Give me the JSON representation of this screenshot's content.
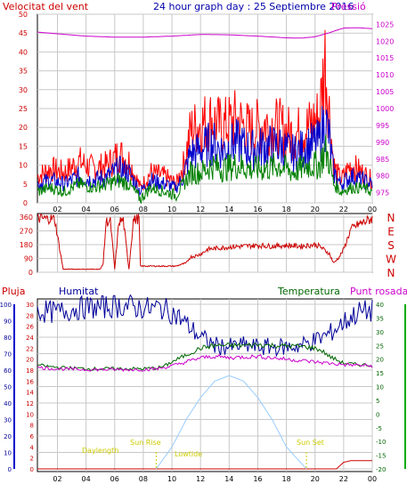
{
  "header": {
    "left_title": "Velocitat del vent",
    "center_title": "24 hour graph day : 25 Septiembre 2016",
    "right_title": "Pressió"
  },
  "colors": {
    "wind_avg": "#0000cc",
    "wind_gust": "#ff0000",
    "wind_low": "#008000",
    "pressure": "#cc00cc",
    "direction": "#cc0000",
    "humidity": "#000099",
    "temperature": "#006600",
    "dewpoint": "#cc00cc",
    "rain": "#cc0000",
    "sun": "#99ccff",
    "grid": "#c8c8c8",
    "axis_left": "#cc0000",
    "axis_right_pressure": "#cc00cc"
  },
  "chart_data": [
    {
      "type": "line",
      "title": "24 hour graph day : 25 Septiembre 2016",
      "ylabel": "Velocitat del vent",
      "y2label": "Pressió",
      "xticks": [
        "02",
        "04",
        "06",
        "08",
        "10",
        "12",
        "14",
        "16",
        "18",
        "20",
        "22",
        "00"
      ],
      "x_range_hours": [
        0.6,
        24.0
      ],
      "ylim": [
        0,
        50
      ],
      "yticks": [
        0,
        5,
        10,
        15,
        20,
        25,
        30,
        35,
        40,
        45,
        50
      ],
      "y2lim": [
        972,
        1028
      ],
      "y2ticks": [
        975,
        980,
        985,
        990,
        995,
        1000,
        1005,
        1010,
        1015,
        1020,
        1025
      ],
      "series": [
        {
          "name": "gust",
          "x_hours": [
            0.6,
            1.5,
            2.5,
            3.5,
            4.5,
            5.5,
            6.3,
            7,
            7.8,
            8.5,
            9.5,
            10.3,
            10.8,
            11.3,
            12,
            12.8,
            13.5,
            14.5,
            15.5,
            16.5,
            17.5,
            18.5,
            19.5,
            20.3,
            20.7,
            21,
            21.3,
            21.8,
            22.5,
            23.3,
            24
          ],
          "values": [
            7,
            9,
            8,
            11,
            9,
            10,
            13,
            11,
            4,
            8,
            7,
            5,
            10,
            19,
            21,
            22,
            20,
            22,
            19,
            21,
            20,
            18,
            20,
            23,
            38,
            24,
            10,
            6,
            10,
            8,
            6
          ]
        },
        {
          "name": "average",
          "x_hours": [
            0.6,
            1.5,
            2.5,
            3.5,
            4.5,
            5.5,
            6.3,
            7,
            7.8,
            8.5,
            9.5,
            10.3,
            10.8,
            11.3,
            12,
            12.8,
            13.5,
            14.5,
            15.5,
            16.5,
            17.5,
            18.5,
            19.5,
            20.3,
            20.7,
            21,
            21.3,
            21.8,
            22.5,
            23.3,
            24
          ],
          "values": [
            5,
            6,
            5,
            7,
            6,
            7,
            9,
            8,
            3,
            6,
            5,
            4,
            7,
            13,
            14,
            16,
            14,
            16,
            14,
            15,
            15,
            13,
            15,
            16,
            22,
            17,
            8,
            5,
            7,
            6,
            5
          ]
        },
        {
          "name": "low",
          "x_hours": [
            0.6,
            1.5,
            2.5,
            3.5,
            4.5,
            5.5,
            6.3,
            7,
            7.8,
            8.5,
            9.5,
            10.3,
            10.8,
            11.3,
            12,
            12.8,
            13.5,
            14.5,
            15.5,
            16.5,
            17.5,
            18.5,
            19.5,
            20.3,
            20.7,
            21,
            21.3,
            21.8,
            22.5,
            23.3,
            24
          ],
          "values": [
            3,
            4,
            3,
            5,
            4,
            5,
            6,
            5,
            1,
            4,
            3,
            2,
            5,
            8,
            8,
            10,
            9,
            10,
            9,
            9,
            10,
            8,
            10,
            10,
            14,
            11,
            5,
            3,
            4,
            4,
            3
          ]
        },
        {
          "name": "pressure",
          "axis": "right",
          "x_hours": [
            0.6,
            2,
            4,
            6,
            8,
            10,
            12,
            14,
            16,
            18,
            19,
            20,
            21,
            22,
            23,
            24
          ],
          "values": [
            1022.7,
            1022.2,
            1021.5,
            1021.2,
            1021.2,
            1021.5,
            1022.0,
            1021.9,
            1021.5,
            1021.0,
            1020.9,
            1021.3,
            1022.5,
            1023.9,
            1024.0,
            1023.7
          ]
        }
      ]
    },
    {
      "type": "line",
      "ylabel": "",
      "ylim": [
        0,
        360
      ],
      "yticks": [
        0,
        90,
        180,
        270,
        360
      ],
      "y2ticks": [
        "N",
        "W",
        "S",
        "E",
        "N"
      ],
      "series": [
        {
          "name": "direction",
          "x_hours": [
            0.6,
            1,
            1.4,
            1.8,
            2.4,
            3.4,
            4.4,
            5,
            5.2,
            5.4,
            5.7,
            6,
            6.3,
            6.6,
            7,
            7.3,
            7.7,
            7.8,
            8.5,
            9,
            9.5,
            10,
            10.3,
            10.6,
            11,
            11.3,
            11.8,
            12.2,
            12.5,
            13,
            14,
            15,
            16,
            17,
            18,
            19,
            19.5,
            20,
            20.3,
            20.6,
            21,
            21.3,
            21.7,
            22,
            22.5,
            23,
            23.5,
            24
          ],
          "values": [
            350,
            350,
            350,
            350,
            20,
            20,
            20,
            20,
            60,
            330,
            330,
            20,
            330,
            340,
            20,
            340,
            350,
            40,
            40,
            40,
            40,
            40,
            40,
            50,
            60,
            100,
            110,
            130,
            150,
            155,
            165,
            170,
            175,
            170,
            175,
            170,
            175,
            180,
            170,
            150,
            120,
            60,
            100,
            150,
            280,
            310,
            330,
            350
          ]
        }
      ]
    },
    {
      "type": "line",
      "legend": [
        "Pluja",
        "Humitat",
        "Temperatura",
        "Punt rosada"
      ],
      "ylim_humidity": [
        0,
        100
      ],
      "yticks_humidity": [
        0,
        10,
        20,
        30,
        40,
        50,
        60,
        70,
        80,
        90,
        100
      ],
      "ylim_rain": [
        0,
        30
      ],
      "yticks_rain": [
        0,
        2,
        4,
        6,
        8,
        10,
        12,
        14,
        16,
        18,
        20,
        22,
        24,
        26,
        28,
        30
      ],
      "ylim_temp": [
        -20,
        40
      ],
      "yticks_temp": [
        -20,
        -15,
        -10,
        -5,
        0,
        5,
        10,
        15,
        20,
        25,
        30,
        35,
        40
      ],
      "annotations": [
        "Daylength",
        "Sun Rise",
        "Lowtide",
        "Sun Set"
      ],
      "series": [
        {
          "name": "humidity",
          "x_hours": [
            0.6,
            2,
            3,
            4,
            5,
            6,
            7,
            7.5,
            8,
            8.5,
            9,
            9.5,
            10,
            10.5,
            11,
            12,
            13,
            14,
            15,
            16,
            17,
            18,
            19,
            20,
            21,
            22,
            23,
            24
          ],
          "values": [
            96,
            95,
            97,
            98,
            98,
            99,
            99,
            98,
            98,
            97,
            98,
            97,
            95,
            92,
            88,
            80,
            75,
            74,
            75,
            74,
            74,
            74,
            75,
            78,
            82,
            89,
            95,
            96
          ]
        },
        {
          "name": "temperature",
          "x_hours": [
            0.6,
            1,
            2,
            4,
            6,
            8,
            9,
            9.5,
            10,
            11,
            12,
            13,
            14,
            15,
            16,
            17,
            18,
            19,
            20,
            20.5,
            21,
            22,
            23,
            24
          ],
          "values": [
            18,
            17.5,
            17,
            16.5,
            16.5,
            16.5,
            16.8,
            17.5,
            19,
            21.5,
            24,
            25,
            25,
            25,
            25.3,
            25,
            24.8,
            24.7,
            24,
            23,
            21,
            18.5,
            18,
            17.8
          ]
        },
        {
          "name": "dewpoint",
          "x_hours": [
            0.6,
            1,
            2,
            4,
            6,
            8,
            9,
            10,
            11,
            12,
            13,
            14,
            15,
            16,
            17,
            18,
            19,
            20,
            21,
            22,
            23,
            24
          ],
          "values": [
            17,
            16.8,
            16.5,
            16.2,
            16.2,
            16.2,
            16.5,
            17.5,
            19,
            20.5,
            21,
            20.5,
            20.8,
            21,
            20.5,
            20,
            19.5,
            19,
            18.5,
            18,
            17.8,
            17.5
          ]
        },
        {
          "name": "rain",
          "x_hours": [
            0.6,
            10,
            20,
            21.5,
            22,
            22.5,
            23,
            24
          ],
          "values": [
            0,
            0,
            0,
            0,
            1.2,
            1.5,
            1.5,
            1.5
          ]
        },
        {
          "name": "sun_elevation",
          "x_hours": [
            8.9,
            10,
            11,
            12,
            13,
            14,
            15,
            16,
            17,
            18,
            19.4
          ],
          "values": [
            -20,
            -12,
            -2,
            6,
            12,
            14,
            12,
            6,
            -2,
            -12,
            -20
          ]
        }
      ]
    }
  ]
}
